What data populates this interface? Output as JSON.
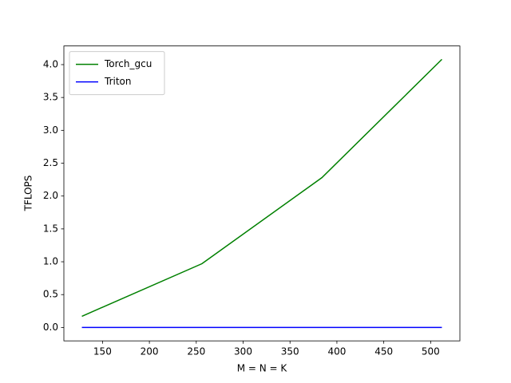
{
  "chart_data": {
    "type": "line",
    "x_label": "M = N = K",
    "y_label": "TFLOPS",
    "x": [
      128,
      256,
      384,
      512
    ],
    "series": [
      {
        "name": "Torch_gcu",
        "color": "#008000",
        "values": [
          0.17,
          0.97,
          2.28,
          4.08
        ]
      },
      {
        "name": "Triton",
        "color": "#0000ff",
        "values": [
          0,
          0,
          0,
          0
        ]
      }
    ],
    "xlim": [
      108.8,
      531.2
    ],
    "xticks": [
      150,
      200,
      250,
      300,
      350,
      400,
      450,
      500
    ],
    "ylim": [
      -0.204,
      4.284
    ],
    "yticks": [
      {
        "value": 0,
        "label": "0.0"
      },
      {
        "value": 0.5,
        "label": "0.5"
      },
      {
        "value": 1,
        "label": "1.0"
      },
      {
        "value": 1.5,
        "label": "1.5"
      },
      {
        "value": 2,
        "label": "2.0"
      },
      {
        "value": 2.5,
        "label": "2.5"
      },
      {
        "value": 3,
        "label": "3.0"
      },
      {
        "value": 3.5,
        "label": "3.5"
      },
      {
        "value": 4,
        "label": "4.0"
      }
    ],
    "legend": "upper-left",
    "grid": false
  }
}
